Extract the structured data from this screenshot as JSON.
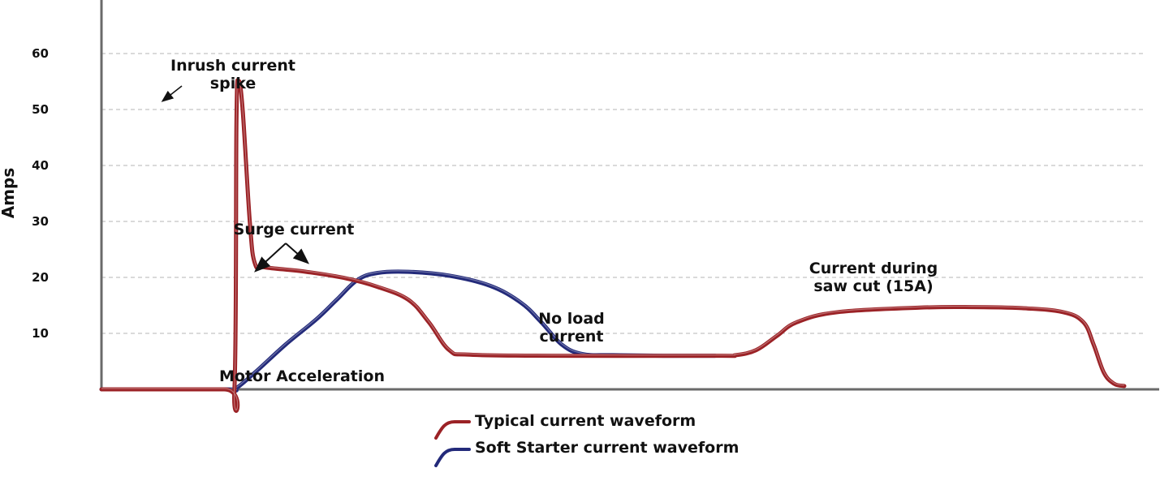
{
  "chart_data": {
    "type": "line",
    "title": "",
    "xlabel": "",
    "ylabel": "Amps",
    "ylim": [
      0,
      70
    ],
    "yticks": [
      10,
      20,
      30,
      40,
      50,
      60
    ],
    "grid": true,
    "legend_position": "bottom-center",
    "series": [
      {
        "name": "Typical current waveform",
        "color": "#9b2226",
        "points": [
          [
            0,
            0
          ],
          [
            12,
            0
          ],
          [
            13,
            0
          ],
          [
            13.2,
            48
          ],
          [
            13.4,
            55
          ],
          [
            13.8,
            50
          ],
          [
            14.5,
            30
          ],
          [
            15,
            22.5
          ],
          [
            16,
            21.8
          ],
          [
            20,
            21
          ],
          [
            24,
            19.8
          ],
          [
            27,
            18.3
          ],
          [
            30,
            16
          ],
          [
            32,
            12
          ],
          [
            34,
            7
          ],
          [
            36,
            6.2
          ],
          [
            44,
            6
          ],
          [
            60,
            6
          ],
          [
            62,
            6.1
          ],
          [
            64,
            7
          ],
          [
            66,
            9.5
          ],
          [
            68,
            12
          ],
          [
            72,
            13.8
          ],
          [
            80,
            14.6
          ],
          [
            85,
            14.7
          ],
          [
            90,
            14.5
          ],
          [
            94,
            13.8
          ],
          [
            96,
            12
          ],
          [
            97,
            8
          ],
          [
            98,
            3
          ],
          [
            99,
            1
          ],
          [
            100,
            0.6
          ]
        ]
      },
      {
        "name": "Soft Starter current waveform",
        "color": "#232a7a",
        "points": [
          [
            0,
            0
          ],
          [
            12,
            0
          ],
          [
            13,
            0
          ],
          [
            15,
            3
          ],
          [
            18,
            8
          ],
          [
            21,
            12.5
          ],
          [
            23,
            16
          ],
          [
            25,
            19.5
          ],
          [
            27,
            20.8
          ],
          [
            30,
            21
          ],
          [
            34,
            20.3
          ],
          [
            38,
            18.5
          ],
          [
            41,
            15.5
          ],
          [
            43,
            12
          ],
          [
            45,
            8
          ],
          [
            47,
            6.3
          ],
          [
            50,
            6.1
          ],
          [
            55,
            6
          ],
          [
            60,
            6
          ]
        ]
      }
    ],
    "annotations": [
      "Inrush current",
      "spike",
      "Surge current",
      "Current during",
      "saw cut (15A)",
      "No load",
      "current",
      "Motor Acceleration"
    ]
  },
  "legend": {
    "items": [
      {
        "label": "Typical current waveform",
        "color": "#9b2226"
      },
      {
        "label": "Soft Starter current waveform",
        "color": "#232a7a"
      }
    ]
  }
}
